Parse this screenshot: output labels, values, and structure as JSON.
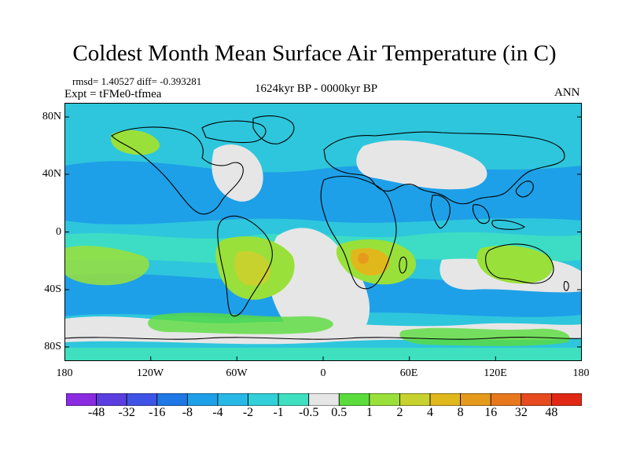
{
  "title": "Coldest Month Mean Surface Air Temperature (in C)",
  "stats": {
    "rmsd_diff": "rmsd= 1.40527  diff= -0.393281",
    "experiment": "Expt = tFMe0-tfmea",
    "period": "1624kyr BP - 0000kyr BP",
    "season": "ANN"
  },
  "map": {
    "projection": "cylindrical equidistant",
    "lon_range": [
      -180,
      180
    ],
    "lat_range": [
      -90,
      90
    ],
    "coastlines": true,
    "background_class_color": "#e6e6e6"
  },
  "axes": {
    "y_ticks": [
      "80N",
      "40N",
      "0",
      "40S",
      "80S"
    ],
    "x_ticks": [
      "180",
      "120W",
      "60W",
      "0",
      "60E",
      "120E",
      "180"
    ]
  },
  "colorbar": {
    "labels": [
      "-48",
      "-32",
      "-16",
      "-8",
      "-4",
      "-2",
      "-1",
      "-0.5",
      "0.5",
      "1",
      "2",
      "4",
      "8",
      "16",
      "32",
      "48"
    ],
    "colors": [
      "#8a2be2",
      "#5a3ee0",
      "#3f54e6",
      "#1e78e6",
      "#1ea0e8",
      "#28b8e6",
      "#32d0d8",
      "#3ee0c0",
      "#e6e6e6",
      "#5adc3c",
      "#9ae03a",
      "#c8d22e",
      "#e0b81c",
      "#e69a1c",
      "#e8781e",
      "#e64a1e",
      "#e02814"
    ]
  }
}
